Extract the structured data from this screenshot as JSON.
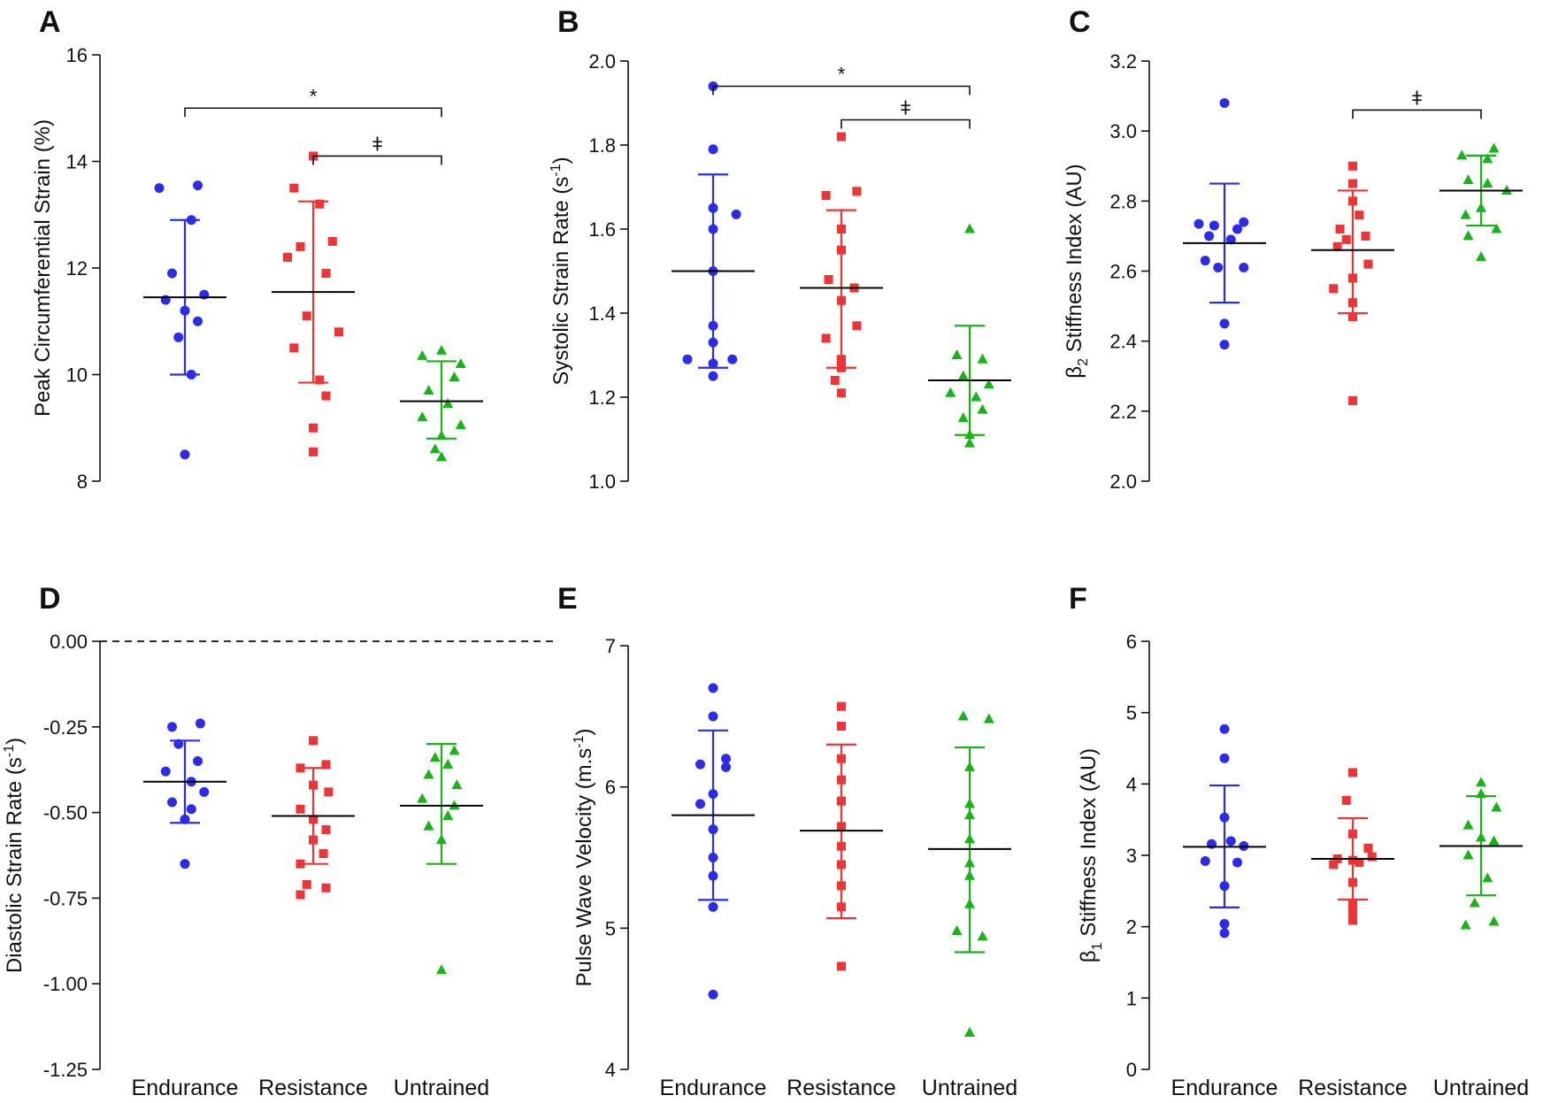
{
  "colors": {
    "endurance": "#2b2bf0",
    "resistance": "#f03333",
    "untrained": "#14b514",
    "axis": "#111111",
    "mean": "#000000"
  },
  "chart_data": [
    {
      "letter": "A",
      "type": "scatter",
      "ylabel": "Peak Circumferential Strain (%)",
      "ylim": [
        8,
        16
      ],
      "yticks": [
        8,
        10,
        12,
        14,
        16
      ],
      "tick_labels": [
        "8",
        "10",
        "12",
        "14",
        "16"
      ],
      "categories": [],
      "series": [
        {
          "name": "Endurance",
          "marker": "circle",
          "mean": 11.45,
          "err_low": 10.0,
          "err_high": 12.9,
          "points": [
            13.5,
            13.55,
            12.9,
            11.9,
            11.5,
            11.4,
            11.2,
            11.0,
            10.7,
            10.0,
            8.5
          ],
          "offsets": [
            -0.2,
            0.1,
            0.05,
            -0.1,
            0.15,
            -0.15,
            0.0,
            0.1,
            -0.05,
            0.05,
            0.0
          ]
        },
        {
          "name": "Resistance",
          "marker": "square",
          "mean": 11.55,
          "err_low": 9.85,
          "err_high": 13.25,
          "points": [
            14.1,
            13.5,
            13.2,
            12.5,
            12.4,
            12.2,
            11.9,
            11.1,
            10.8,
            10.5,
            9.9,
            9.6,
            9.0,
            8.55
          ],
          "offsets": [
            0.0,
            -0.15,
            0.05,
            0.15,
            -0.1,
            -0.2,
            0.1,
            -0.05,
            0.2,
            -0.15,
            0.05,
            0.1,
            0.0,
            0.0
          ]
        },
        {
          "name": "Untrained",
          "marker": "triangle",
          "mean": 9.5,
          "err_low": 8.8,
          "err_high": 10.25,
          "points": [
            10.45,
            10.35,
            10.2,
            9.95,
            9.7,
            9.45,
            9.2,
            9.05,
            8.85,
            8.6,
            8.45
          ],
          "offsets": [
            0.0,
            -0.15,
            0.15,
            0.1,
            -0.1,
            0.05,
            -0.15,
            0.15,
            0.0,
            -0.05,
            0.0
          ]
        }
      ],
      "significance": [
        {
          "from": 0,
          "to": 2,
          "y": 15.0,
          "mark": "*"
        },
        {
          "from": 1,
          "to": 2,
          "y": 14.1,
          "mark": "ǂ"
        }
      ]
    },
    {
      "letter": "B",
      "type": "scatter",
      "ylabel": "Systolic Strain Rate (s",
      "ylabel_sup": "-1",
      "ylabel_end": ")",
      "ylim": [
        1.0,
        2.0
      ],
      "yticks": [
        1.0,
        1.2,
        1.4,
        1.6,
        1.8,
        2.0
      ],
      "tick_labels": [
        "1.0",
        "1.2",
        "1.4",
        "1.6",
        "1.8",
        "2.0"
      ],
      "categories": [],
      "series": [
        {
          "name": "Endurance",
          "marker": "circle",
          "mean": 1.5,
          "err_low": 1.27,
          "err_high": 1.73,
          "points": [
            1.94,
            1.79,
            1.65,
            1.635,
            1.6,
            1.5,
            1.37,
            1.33,
            1.29,
            1.29,
            1.28,
            1.25
          ],
          "offsets": [
            0.0,
            0.0,
            0.0,
            0.18,
            0.0,
            0.0,
            0.0,
            0.0,
            -0.2,
            0.15,
            0.0,
            0.0
          ]
        },
        {
          "name": "Resistance",
          "marker": "square",
          "mean": 1.46,
          "err_low": 1.27,
          "err_high": 1.645,
          "points": [
            1.82,
            1.69,
            1.68,
            1.6,
            1.55,
            1.48,
            1.46,
            1.43,
            1.37,
            1.34,
            1.29,
            1.27,
            1.24,
            1.21
          ],
          "offsets": [
            0.0,
            0.12,
            -0.12,
            0.0,
            0.0,
            -0.1,
            0.1,
            0.0,
            0.12,
            -0.12,
            0.0,
            0.0,
            -0.05,
            0.0
          ]
        },
        {
          "name": "Untrained",
          "marker": "triangle",
          "mean": 1.24,
          "err_low": 1.11,
          "err_high": 1.37,
          "points": [
            1.6,
            1.3,
            1.29,
            1.25,
            1.23,
            1.21,
            1.2,
            1.17,
            1.15,
            1.11,
            1.09
          ],
          "offsets": [
            0.0,
            -0.1,
            0.1,
            -0.05,
            0.15,
            -0.15,
            0.05,
            0.1,
            -0.05,
            0.0,
            0.0
          ]
        }
      ],
      "significance": [
        {
          "from": 0,
          "to": 2,
          "y": 1.94,
          "mark": "*"
        },
        {
          "from": 1,
          "to": 2,
          "y": 1.86,
          "mark": "ǂ"
        }
      ]
    },
    {
      "letter": "C",
      "type": "scatter",
      "ylabel": "β",
      "ylabel_sub": "2",
      "ylabel_end": " Stiffness Index (AU)",
      "ylim": [
        2.0,
        3.2
      ],
      "yticks": [
        2.0,
        2.2,
        2.4,
        2.6,
        2.8,
        3.0,
        3.2
      ],
      "tick_labels": [
        "2.0",
        "2.2",
        "2.4",
        "2.6",
        "2.8",
        "3.0",
        "3.2"
      ],
      "categories": [],
      "series": [
        {
          "name": "Endurance",
          "marker": "circle",
          "mean": 2.68,
          "err_low": 2.51,
          "err_high": 2.85,
          "points": [
            3.08,
            2.74,
            2.735,
            2.73,
            2.72,
            2.7,
            2.69,
            2.63,
            2.61,
            2.61,
            2.45,
            2.39
          ],
          "offsets": [
            0.0,
            0.15,
            -0.2,
            -0.08,
            0.1,
            -0.12,
            0.05,
            -0.15,
            0.15,
            -0.05,
            0.0,
            0.0
          ]
        },
        {
          "name": "Resistance",
          "marker": "square",
          "mean": 2.66,
          "err_low": 2.48,
          "err_high": 2.83,
          "points": [
            2.9,
            2.85,
            2.8,
            2.76,
            2.72,
            2.7,
            2.69,
            2.67,
            2.62,
            2.58,
            2.55,
            2.51,
            2.47,
            2.23
          ],
          "offsets": [
            0.0,
            0.0,
            0.0,
            0.05,
            -0.1,
            0.1,
            -0.05,
            -0.12,
            0.12,
            0.0,
            -0.15,
            0.0,
            0.0,
            0.0
          ]
        },
        {
          "name": "Untrained",
          "marker": "triangle",
          "mean": 2.83,
          "err_low": 2.73,
          "err_high": 2.93,
          "points": [
            2.95,
            2.93,
            2.92,
            2.86,
            2.85,
            2.83,
            2.78,
            2.76,
            2.72,
            2.7,
            2.64
          ],
          "offsets": [
            0.1,
            -0.15,
            0.05,
            -0.1,
            0.05,
            0.2,
            0.0,
            -0.12,
            0.12,
            -0.1,
            0.0
          ]
        }
      ],
      "significance": [
        {
          "from": 1,
          "to": 2,
          "y": 3.06,
          "mark": "ǂ"
        }
      ]
    },
    {
      "letter": "D",
      "type": "scatter",
      "ylabel": "Diastolic Strain Rate (s",
      "ylabel_sup": "-1",
      "ylabel_end": ")",
      "ylim": [
        -1.25,
        0.0
      ],
      "yticks": [
        -1.25,
        -1.0,
        -0.75,
        -0.5,
        -0.25,
        0.0
      ],
      "tick_labels": [
        "-1.25",
        "-1.00",
        "-0.75",
        "-0.50",
        "-0.25",
        "0.00"
      ],
      "zero_line": 0.0,
      "categories": [
        "Endurance",
        "Resistance",
        "Untrained"
      ],
      "series": [
        {
          "name": "Endurance",
          "marker": "circle",
          "mean": -0.41,
          "err_low": -0.53,
          "err_high": -0.29,
          "points": [
            -0.24,
            -0.25,
            -0.3,
            -0.35,
            -0.38,
            -0.41,
            -0.44,
            -0.47,
            -0.49,
            -0.52,
            -0.65
          ],
          "offsets": [
            0.12,
            -0.1,
            -0.05,
            0.1,
            -0.15,
            0.05,
            0.15,
            -0.1,
            0.05,
            0.0,
            0.0
          ]
        },
        {
          "name": "Resistance",
          "marker": "square",
          "mean": -0.51,
          "err_low": -0.65,
          "err_high": -0.37,
          "points": [
            -0.29,
            -0.36,
            -0.37,
            -0.42,
            -0.44,
            -0.49,
            -0.52,
            -0.55,
            -0.58,
            -0.62,
            -0.65,
            -0.71,
            -0.72,
            -0.74
          ],
          "offsets": [
            0.0,
            0.1,
            -0.1,
            0.0,
            0.12,
            -0.1,
            0.0,
            0.1,
            0.0,
            0.08,
            -0.1,
            -0.05,
            0.1,
            -0.1
          ]
        },
        {
          "name": "Untrained",
          "marker": "triangle",
          "mean": -0.48,
          "err_low": -0.65,
          "err_high": -0.3,
          "points": [
            -0.32,
            -0.34,
            -0.36,
            -0.39,
            -0.42,
            -0.46,
            -0.48,
            -0.51,
            -0.54,
            -0.58,
            -0.96
          ],
          "offsets": [
            0.1,
            -0.05,
            0.05,
            -0.1,
            0.12,
            -0.15,
            0.1,
            0.05,
            -0.1,
            0.0,
            0.0
          ]
        }
      ],
      "significance": []
    },
    {
      "letter": "E",
      "type": "scatter",
      "ylabel": "Pulse Wave Velocity (m.s",
      "ylabel_sup": "-1",
      "ylabel_end": ")",
      "ylim": [
        4,
        7
      ],
      "yticks": [
        4,
        5,
        6,
        7
      ],
      "tick_labels": [
        "4",
        "5",
        "6",
        "7"
      ],
      "categories": [
        "Endurance",
        "Resistance",
        "Untrained"
      ],
      "series": [
        {
          "name": "Endurance",
          "marker": "circle",
          "mean": 5.8,
          "err_low": 5.2,
          "err_high": 6.4,
          "points": [
            6.7,
            6.5,
            6.2,
            6.16,
            6.14,
            5.95,
            5.88,
            5.7,
            5.5,
            5.37,
            5.15,
            4.53
          ],
          "offsets": [
            0.0,
            0.0,
            0.1,
            -0.1,
            0.1,
            0.0,
            -0.1,
            0.0,
            0.0,
            0.0,
            0.0,
            0.0
          ]
        },
        {
          "name": "Resistance",
          "marker": "square",
          "mean": 5.69,
          "err_low": 5.07,
          "err_high": 6.3,
          "points": [
            6.57,
            6.43,
            6.2,
            6.05,
            5.9,
            5.72,
            5.58,
            5.45,
            5.3,
            5.15,
            4.73
          ],
          "offsets": [
            0.0,
            0.0,
            0.0,
            0.0,
            0.0,
            0.0,
            0.0,
            0.0,
            0.0,
            0.0,
            0.0
          ]
        },
        {
          "name": "Untrained",
          "marker": "triangle",
          "mean": 5.56,
          "err_low": 4.83,
          "err_high": 6.28,
          "points": [
            6.5,
            6.48,
            6.14,
            5.88,
            5.8,
            5.63,
            5.46,
            5.37,
            5.17,
            4.98,
            4.94,
            4.26
          ],
          "offsets": [
            -0.05,
            0.15,
            0.0,
            0.0,
            0.0,
            0.0,
            0.0,
            0.0,
            0.0,
            -0.1,
            0.1,
            0.0
          ]
        }
      ],
      "significance": []
    },
    {
      "letter": "F",
      "type": "scatter",
      "ylabel": "β",
      "ylabel_sub": "1",
      "ylabel_end": " Stiffness Index (AU)",
      "ylim": [
        0,
        6
      ],
      "yticks": [
        0,
        1,
        2,
        3,
        4,
        5,
        6
      ],
      "tick_labels": [
        "0",
        "1",
        "2",
        "3",
        "4",
        "5",
        "6"
      ],
      "categories": [
        "Endurance",
        "Resistance",
        "Untrained"
      ],
      "series": [
        {
          "name": "Endurance",
          "marker": "circle",
          "mean": 3.12,
          "err_low": 2.27,
          "err_high": 3.98,
          "points": [
            4.77,
            4.36,
            3.53,
            3.2,
            3.16,
            3.13,
            2.92,
            2.9,
            2.57,
            2.04,
            1.91
          ],
          "offsets": [
            0.0,
            0.0,
            0.0,
            0.05,
            -0.1,
            0.15,
            -0.15,
            0.1,
            0.0,
            0.0,
            0.0
          ]
        },
        {
          "name": "Resistance",
          "marker": "square",
          "mean": 2.95,
          "err_low": 2.38,
          "err_high": 3.52,
          "points": [
            4.16,
            3.77,
            3.3,
            3.1,
            2.98,
            2.95,
            2.93,
            2.9,
            2.87,
            2.62,
            2.31,
            2.19,
            2.09
          ],
          "offsets": [
            0.0,
            -0.05,
            0.0,
            0.12,
            0.15,
            -0.12,
            0.0,
            0.05,
            -0.15,
            0.0,
            0.0,
            0.0,
            0.0
          ]
        },
        {
          "name": "Untrained",
          "marker": "triangle",
          "mean": 3.13,
          "err_low": 2.44,
          "err_high": 3.83,
          "points": [
            4.02,
            3.86,
            3.67,
            3.42,
            3.25,
            3.2,
            3.0,
            2.68,
            2.33,
            2.07,
            2.02
          ],
          "offsets": [
            0.0,
            0.0,
            0.12,
            -0.1,
            0.0,
            0.1,
            -0.1,
            0.05,
            -0.05,
            0.1,
            -0.12
          ]
        }
      ],
      "significance": []
    }
  ]
}
